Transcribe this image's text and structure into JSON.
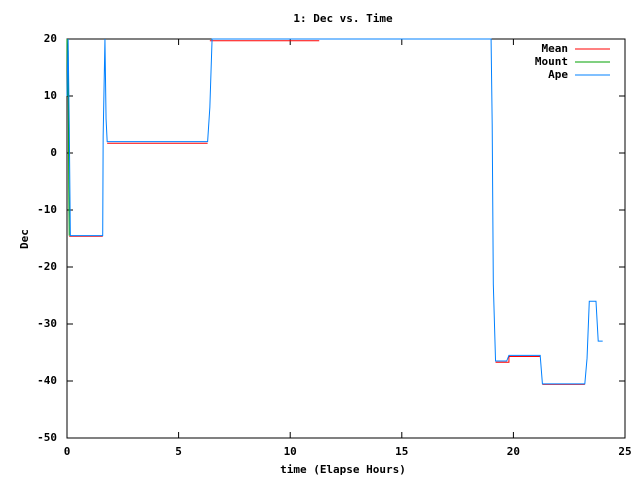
{
  "chart_data": {
    "type": "line",
    "title": "1: Dec vs. Time",
    "x_label": "time (Elapse Hours)",
    "y_label": "Dec",
    "xlim": [
      0,
      25
    ],
    "xticks": [
      0,
      5,
      10,
      15,
      20,
      25
    ],
    "ylim": [
      -50,
      20
    ],
    "yticks": [
      -50,
      -40,
      -30,
      -20,
      -10,
      0,
      10,
      20
    ],
    "grid": false,
    "legend": "top-right",
    "series": [
      {
        "name": "Mean",
        "color": "#ff0000",
        "x": [
          0.1,
          1.6,
          1.7,
          1.8,
          6.3,
          6.35,
          6.4,
          11.3,
          15,
          19.2,
          19.8,
          19.8,
          21.2,
          21.25,
          21.3,
          23.2
        ],
        "values": [
          -14.6,
          -14.6,
          null,
          1.7,
          1.7,
          null,
          19.7,
          19.7,
          null,
          -36.7,
          -36.7,
          -35.7,
          -35.7,
          null,
          -40.6,
          -40.6
        ]
      },
      {
        "name": "Mount",
        "color": "#00a000",
        "x": [
          0,
          0.02,
          0.05,
          0.08,
          0.1
        ],
        "values": [
          20,
          10,
          18,
          -6,
          -14.5
        ]
      },
      {
        "name": "Ape",
        "color": "#0080ff",
        "x": [
          0,
          0.05,
          0.1,
          0.15,
          1.6,
          1.62,
          1.7,
          1.75,
          1.8,
          6.3,
          6.4,
          6.5,
          19.0,
          19.05,
          19.1,
          19.2,
          19.7,
          19.8,
          21.2,
          21.3,
          23.2,
          23.3,
          23.4,
          23.7,
          23.8,
          24.0
        ],
        "values": [
          10,
          20,
          5,
          -14.5,
          -14.5,
          3,
          20,
          6,
          2,
          2,
          8,
          20,
          20,
          5,
          -23,
          -36.5,
          -36.5,
          -35.5,
          -35.5,
          -40.5,
          -40.5,
          -36,
          -26,
          -26,
          -33,
          -33
        ]
      }
    ]
  }
}
